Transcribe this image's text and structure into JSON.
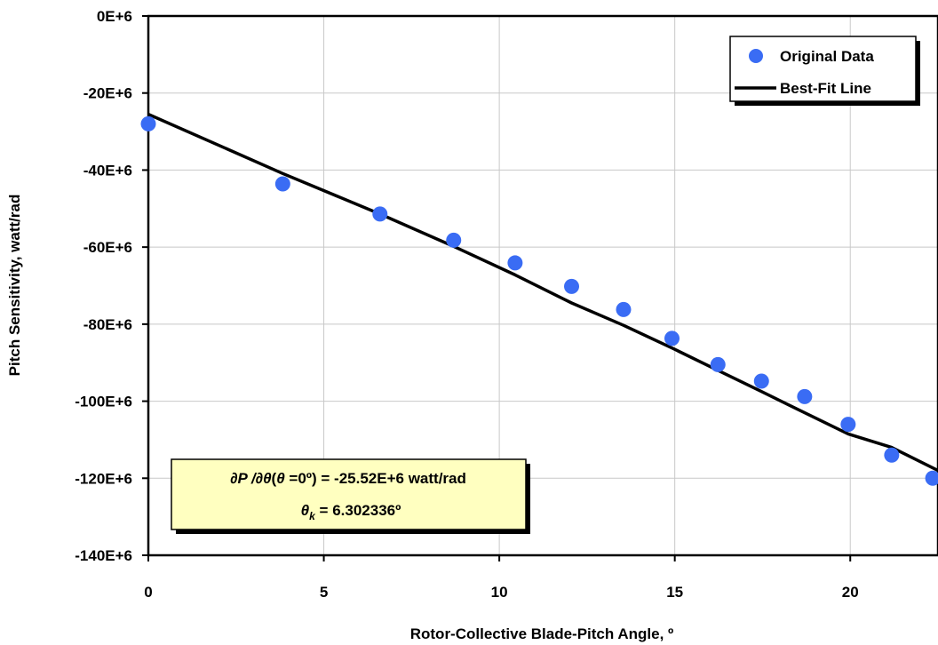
{
  "chart_data": {
    "type": "scatter",
    "xlabel": "Rotor-Collective Blade-Pitch Angle, º",
    "ylabel": "Pitch Sensitivity, watt/rad",
    "xlim": [
      0,
      22.5
    ],
    "ylim": [
      -140000000,
      0
    ],
    "xticks": [
      0,
      5,
      10,
      15,
      20
    ],
    "xtick_labels": [
      "0",
      "5",
      "10",
      "15",
      "20"
    ],
    "yticks": [
      0,
      -20000000,
      -40000000,
      -60000000,
      -80000000,
      -100000000,
      -120000000,
      -140000000
    ],
    "ytick_labels": [
      "0E+6",
      "-20E+6",
      "-40E+6",
      "-60E+6",
      "-80E+6",
      "-100E+6",
      "-120E+6",
      "-140E+6"
    ],
    "grid": true,
    "legend_position": "top-right",
    "series": [
      {
        "name": "Original Data",
        "kind": "markers",
        "color": "#3a6cf4",
        "x": [
          0.0,
          3.83,
          6.6,
          8.7,
          10.45,
          12.06,
          13.54,
          14.92,
          16.23,
          17.47,
          18.7,
          19.94,
          21.18,
          22.35
        ],
        "y": [
          -28000000.0,
          -43600000.0,
          -51400000.0,
          -58200000.0,
          -64100000.0,
          -70200000.0,
          -76200000.0,
          -83700000.0,
          -90500000.0,
          -94800000.0,
          -98800000.0,
          -106000000.0,
          -114000000.0,
          -120000000.0
        ]
      },
      {
        "name": "Best-Fit Line",
        "kind": "line",
        "color": "#000000",
        "x": [
          0.0,
          3.83,
          6.6,
          8.7,
          10.45,
          12.06,
          13.54,
          14.92,
          16.23,
          17.47,
          18.7,
          19.94,
          21.18,
          22.5
        ],
        "y": [
          -25520000.0,
          -40900000.0,
          -51400000.0,
          -59800000.0,
          -67200000.0,
          -74500000.0,
          -80300000.0,
          -86200000.0,
          -92000000.0,
          -97500000.0,
          -103000000.0,
          -108500000.0,
          -112000000.0,
          -118000000.0
        ]
      }
    ],
    "annotation": {
      "line1_symbol": "∂P /∂θ",
      "line1_paren_open": "(",
      "line1_theta": "θ",
      "line1_rest": " =0º) = -25.52E+6 watt/rad",
      "line2_symbol": "θ",
      "line2_sub": "k",
      "line2_rest": " = 6.302336º",
      "background": "#ffffc0"
    }
  }
}
